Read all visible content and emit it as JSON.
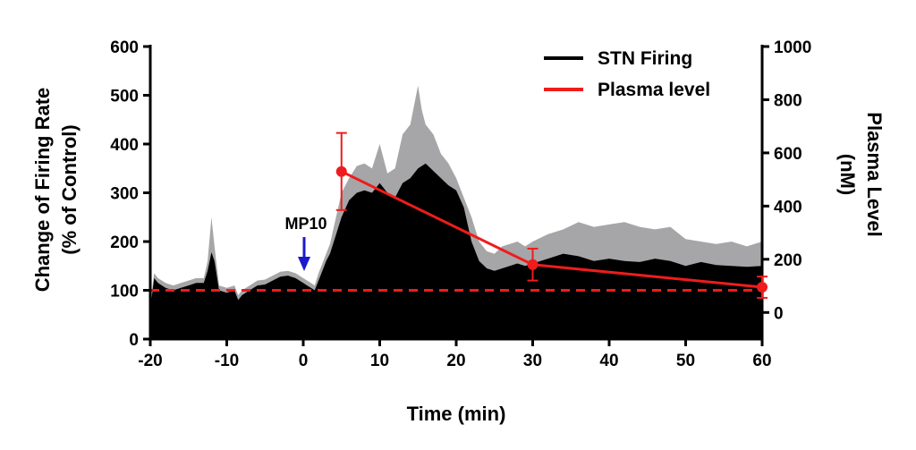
{
  "chart_data": {
    "type": "area",
    "xlabel": "Time (min)",
    "ylabel_lines": [
      "Change of Firing Rate",
      "(% of Control)"
    ],
    "y2label_lines": [
      "Plasma Level",
      "(nM)"
    ],
    "xlim": [
      -20,
      60
    ],
    "ylim": [
      0,
      600
    ],
    "y2lim": [
      -100,
      1000
    ],
    "x_ticks": [
      "-20",
      "-10",
      "0",
      "10",
      "20",
      "30",
      "40",
      "50",
      "60"
    ],
    "y_ticks": [
      "0",
      "100",
      "200",
      "300",
      "400",
      "500",
      "600"
    ],
    "y2_ticks": [
      "0",
      "200",
      "400",
      "600",
      "800",
      "1000"
    ],
    "legend": {
      "placement": "top-right",
      "items": [
        {
          "label": "STN Firing",
          "color": "#000000"
        },
        {
          "label": "Plasma level",
          "color": "#ee1c1c"
        }
      ]
    },
    "annotation": {
      "text": "MP10",
      "x": 0,
      "arrow_color": "#1a1acc"
    },
    "baseline": {
      "y": 100,
      "color": "#ee1c1c",
      "style": "dashed"
    },
    "series": [
      {
        "name": "STN Firing",
        "kind": "mean-area",
        "color": "#000000",
        "x": [
          -20,
          -19.5,
          -19,
          -18,
          -17,
          -16,
          -15,
          -14,
          -13,
          -12.5,
          -12,
          -11.6,
          -11,
          -10,
          -9,
          -8.5,
          -8,
          -7,
          -6,
          -5,
          -4,
          -3,
          -2,
          -1,
          0,
          0.5,
          1,
          1.5,
          2,
          2.5,
          3,
          3.5,
          4,
          5,
          6,
          7,
          8,
          9,
          10,
          11,
          12,
          13,
          14,
          15,
          16,
          17,
          18,
          19,
          20,
          21,
          22,
          23,
          24,
          25,
          26,
          27,
          28,
          29,
          30,
          32,
          34,
          36,
          38,
          40,
          42,
          44,
          46,
          48,
          50,
          52,
          54,
          56,
          58,
          60
        ],
        "values": [
          60,
          125,
          115,
          105,
          100,
          105,
          110,
          115,
          115,
          140,
          178,
          160,
          100,
          95,
          100,
          80,
          90,
          100,
          110,
          112,
          120,
          128,
          130,
          125,
          115,
          110,
          105,
          100,
          120,
          140,
          160,
          175,
          200,
          250,
          285,
          300,
          305,
          300,
          320,
          300,
          290,
          320,
          330,
          350,
          360,
          345,
          330,
          315,
          305,
          270,
          200,
          160,
          145,
          140,
          145,
          150,
          155,
          150,
          155,
          165,
          175,
          170,
          160,
          165,
          160,
          158,
          165,
          160,
          150,
          158,
          152,
          150,
          148,
          150
        ]
      },
      {
        "name": "SEM upper",
        "kind": "error-band",
        "color": "#a6a6a8",
        "x": [
          -20,
          -19.5,
          -19,
          -18,
          -17,
          -16,
          -15,
          -14,
          -13,
          -12.5,
          -12,
          -11.6,
          -11,
          -10,
          -9,
          -8.5,
          -8,
          -7,
          -6,
          -5,
          -4,
          -3,
          -2,
          -1,
          0,
          0.5,
          1,
          1.5,
          2,
          2.5,
          3,
          3.5,
          4,
          5,
          6,
          7,
          8,
          9,
          10,
          11,
          12,
          13,
          14,
          14.5,
          15,
          15.5,
          16,
          17,
          18,
          19,
          20,
          21,
          22,
          23,
          24,
          25,
          26,
          27,
          28,
          29,
          30,
          32,
          34,
          36,
          38,
          40,
          42,
          44,
          46,
          48,
          50,
          52,
          54,
          56,
          58,
          60
        ],
        "values": [
          70,
          135,
          125,
          115,
          110,
          115,
          120,
          125,
          125,
          160,
          250,
          190,
          110,
          105,
          110,
          90,
          100,
          110,
          120,
          122,
          130,
          138,
          140,
          135,
          125,
          120,
          115,
          110,
          135,
          155,
          175,
          195,
          230,
          300,
          330,
          355,
          360,
          350,
          400,
          340,
          350,
          420,
          440,
          480,
          520,
          470,
          440,
          420,
          380,
          360,
          330,
          290,
          250,
          200,
          180,
          175,
          190,
          195,
          200,
          190,
          200,
          215,
          225,
          240,
          230,
          235,
          240,
          230,
          225,
          230,
          205,
          200,
          195,
          200,
          190,
          200
        ]
      },
      {
        "name": "Plasma level",
        "kind": "line",
        "axis": "right",
        "color": "#ee1c1c",
        "x": [
          5,
          30,
          60
        ],
        "values": [
          530,
          180,
          95
        ],
        "err": [
          145,
          60,
          40
        ]
      }
    ]
  }
}
